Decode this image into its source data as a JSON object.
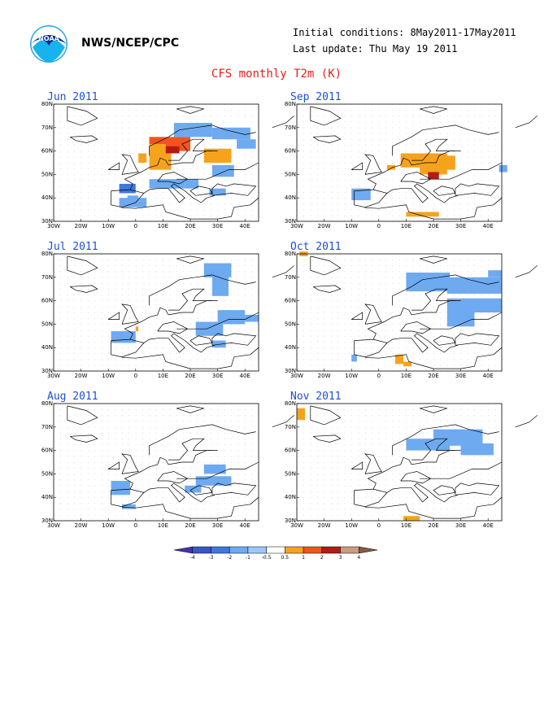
{
  "header": {
    "org": "NWS/NCEP/CPC",
    "initial_conditions": "Initial conditions: 8May2011-17May2011",
    "last_update": "Last update: Thu May 19 2011",
    "logo_text": "NOAA",
    "title": "CFS monthly T2m (K)"
  },
  "map_axes": {
    "lon_labels": [
      "30W",
      "20W",
      "10W",
      "0",
      "10E",
      "20E",
      "30E",
      "40E"
    ],
    "lat_labels": [
      "80N",
      "70N",
      "60N",
      "50N",
      "40N",
      "30N"
    ],
    "lon_range": [
      -30,
      45
    ],
    "lat_range": [
      30,
      80
    ]
  },
  "colors": {
    "-4": "#4a2fb0",
    "-3": "#3a55c8",
    "-2": "#3f78dc",
    "-1": "#6eaaf0",
    "1": "#f5a31d",
    "2": "#f0541f",
    "3": "#b51a14",
    "4": "#c89c86",
    "5": "#8b5a44"
  },
  "legend": {
    "labels": [
      "-4",
      "-3",
      "-2",
      "-1",
      "-0.5",
      "0.5",
      "1",
      "2",
      "3",
      "4"
    ],
    "colors": [
      "#4a2fb0",
      "#3a55c8",
      "#3f78dc",
      "#6eaaf0",
      "#9cc8f8",
      "#ffffff",
      "#f5a31d",
      "#f0541f",
      "#b51a14",
      "#c89c86",
      "#8b5a44"
    ]
  },
  "panels": [
    {
      "month": "Jun 2011",
      "cells": [
        [
          5,
          62,
          15,
          4,
          2
        ],
        [
          5,
          60,
          15,
          4,
          2
        ],
        [
          5,
          59,
          11,
          3,
          3
        ],
        [
          5,
          57,
          6,
          6,
          1
        ],
        [
          5,
          52,
          8,
          7,
          1
        ],
        [
          1,
          55,
          3,
          4,
          1
        ],
        [
          2,
          50,
          -3,
          3,
          1
        ],
        [
          14,
          66,
          14,
          6,
          -1
        ],
        [
          28,
          65,
          14,
          5,
          -1
        ],
        [
          37,
          61,
          7,
          4,
          -1
        ],
        [
          25,
          55,
          10,
          6,
          1
        ],
        [
          28,
          49,
          8,
          5,
          -1
        ],
        [
          -6,
          42,
          6,
          4,
          -2
        ],
        [
          -6,
          36,
          10,
          4,
          -1
        ],
        [
          5,
          44,
          13,
          4,
          -1
        ],
        [
          18,
          44,
          5,
          4,
          -1
        ],
        [
          27,
          41,
          6,
          3,
          -1
        ],
        [
          -3,
          38,
          4,
          3,
          -1
        ]
      ]
    },
    {
      "month": "Jul 2011",
      "cells": [
        [
          25,
          70,
          10,
          6,
          -1
        ],
        [
          28,
          62,
          6,
          10,
          -1
        ],
        [
          22,
          45,
          10,
          6,
          -1
        ],
        [
          30,
          50,
          10,
          6,
          -1
        ],
        [
          40,
          51,
          5,
          3,
          -1
        ],
        [
          -9,
          42,
          9,
          5,
          -1
        ],
        [
          0,
          47,
          1,
          2,
          1
        ],
        [
          28,
          40,
          5,
          3,
          -1
        ]
      ]
    },
    {
      "month": "Aug 2011",
      "cells": [
        [
          -9,
          41,
          7,
          6,
          -1
        ],
        [
          -5,
          35,
          5,
          2,
          -1
        ],
        [
          25,
          50,
          8,
          4,
          -1
        ],
        [
          22,
          45,
          13,
          4,
          -1
        ],
        [
          18,
          42,
          6,
          3,
          -1
        ]
      ]
    },
    {
      "month": "Sep 2011",
      "cells": [
        [
          8,
          53,
          17,
          6,
          1
        ],
        [
          15,
          50,
          10,
          4,
          1
        ],
        [
          22,
          52,
          6,
          6,
          1
        ],
        [
          18,
          48,
          4,
          3,
          3
        ],
        [
          3,
          52,
          3,
          2,
          1
        ],
        [
          -10,
          39,
          7,
          5,
          -1
        ],
        [
          10,
          32,
          12,
          2,
          1
        ],
        [
          44,
          51,
          3,
          3,
          -1
        ]
      ]
    },
    {
      "month": "Oct 2011",
      "cells": [
        [
          10,
          64,
          16,
          8,
          -1
        ],
        [
          25,
          63,
          20,
          7,
          -1
        ],
        [
          25,
          55,
          20,
          6,
          -1
        ],
        [
          25,
          49,
          10,
          6,
          -1
        ],
        [
          -10,
          34,
          2,
          3,
          -1
        ],
        [
          6,
          33,
          3,
          4,
          1
        ],
        [
          9,
          32,
          3,
          2,
          1
        ],
        [
          -29,
          79,
          3,
          2,
          1
        ],
        [
          40,
          70,
          5,
          3,
          -1
        ]
      ]
    },
    {
      "month": "Nov 2011",
      "cells": [
        [
          10,
          60,
          16,
          5,
          -1
        ],
        [
          20,
          62,
          18,
          7,
          -1
        ],
        [
          30,
          58,
          12,
          5,
          -1
        ],
        [
          -30,
          73,
          3,
          5,
          1
        ],
        [
          9,
          30,
          6,
          2,
          1
        ]
      ]
    }
  ]
}
